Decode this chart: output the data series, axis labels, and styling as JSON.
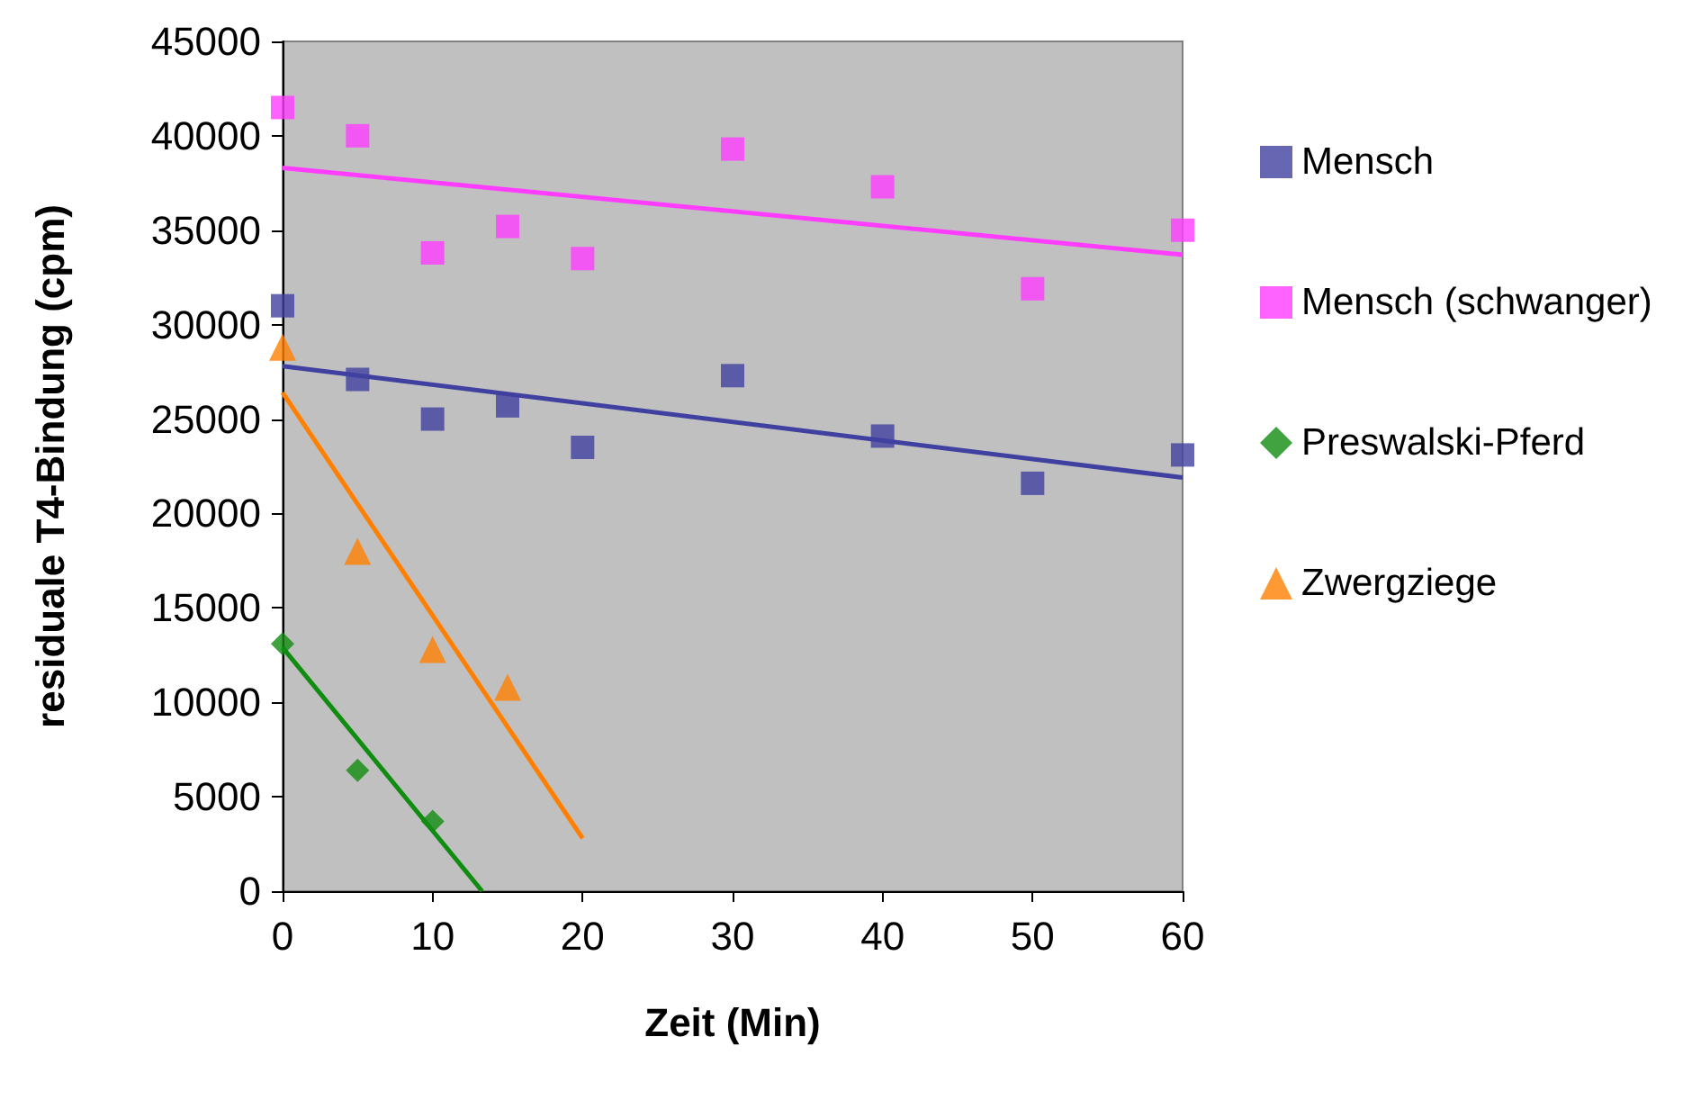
{
  "chart_data": {
    "type": "scatter",
    "xlabel": "Zeit (Min)",
    "ylabel": "residuale T4-Bindung (cpm)",
    "xlim": [
      0,
      60
    ],
    "xticks": [
      0,
      10,
      20,
      30,
      40,
      50,
      60
    ],
    "ylim": [
      0,
      45000
    ],
    "yticks": [
      0,
      5000,
      10000,
      15000,
      20000,
      25000,
      30000,
      35000,
      40000,
      45000
    ],
    "grid": false,
    "legend": "right",
    "series": [
      {
        "name": "Mensch",
        "color": "#4040a0",
        "marker": "square",
        "x": [
          0,
          5,
          10,
          15,
          20,
          30,
          40,
          50,
          60
        ],
        "values": [
          31000,
          27100,
          25000,
          25700,
          23500,
          27300,
          24100,
          21600,
          23100
        ]
      },
      {
        "name": "Mensch (schwanger)",
        "color": "#ff3cff",
        "marker": "square",
        "x": [
          0,
          5,
          10,
          15,
          20,
          30,
          40,
          50,
          60
        ],
        "values": [
          41500,
          40000,
          33800,
          35200,
          33500,
          39300,
          37300,
          31900,
          35000
        ]
      },
      {
        "name": "Preswalski-Pferd",
        "color": "#108c10",
        "marker": "diamond",
        "x": [
          0,
          5,
          10
        ],
        "values": [
          13100,
          6400,
          3700
        ]
      },
      {
        "name": "Zwergziege",
        "color": "#ff8000",
        "marker": "triangle",
        "x": [
          0,
          5,
          10,
          15
        ],
        "values": [
          28800,
          18000,
          12800,
          10800
        ]
      },
      {
        "type": "line",
        "color": "#4040a0",
        "marker": "none",
        "x": [
          0,
          60
        ],
        "values": [
          27800,
          21900
        ]
      },
      {
        "type": "line",
        "color": "#ff3cff",
        "marker": "none",
        "x": [
          0,
          60
        ],
        "values": [
          38300,
          33700
        ]
      },
      {
        "type": "line",
        "color": "#108c10",
        "marker": "none",
        "x": [
          0,
          13.3
        ],
        "values": [
          12900,
          0
        ]
      },
      {
        "type": "line",
        "color": "#ff8000",
        "marker": "none",
        "x": [
          0,
          20
        ],
        "values": [
          26400,
          2800
        ]
      }
    ]
  }
}
